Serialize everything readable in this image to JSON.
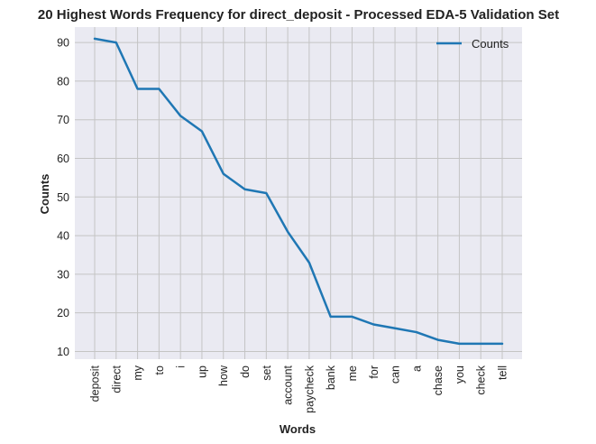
{
  "chart_data": {
    "type": "line",
    "title": "20 Highest Words Frequency for direct_deposit - Processed EDA-5 Validation Set",
    "xlabel": "Words",
    "ylabel": "Counts",
    "categories": [
      "deposit",
      "direct",
      "my",
      "to",
      "i",
      "up",
      "how",
      "do",
      "set",
      "account",
      "paycheck",
      "bank",
      "me",
      "for",
      "can",
      "a",
      "chase",
      "you",
      "check",
      "tell"
    ],
    "series": [
      {
        "name": "Counts",
        "values": [
          91,
          90,
          78,
          78,
          71,
          67,
          56,
          52,
          51,
          41,
          33,
          19,
          19,
          17,
          16,
          15,
          13,
          12,
          12,
          12
        ],
        "color": "#1f77b4"
      }
    ],
    "ylim": [
      8,
      94
    ],
    "yticks": [
      10,
      20,
      30,
      40,
      50,
      60,
      70,
      80,
      90
    ],
    "grid": true,
    "legend_position": "top-right",
    "background": "#eaeaf2"
  }
}
